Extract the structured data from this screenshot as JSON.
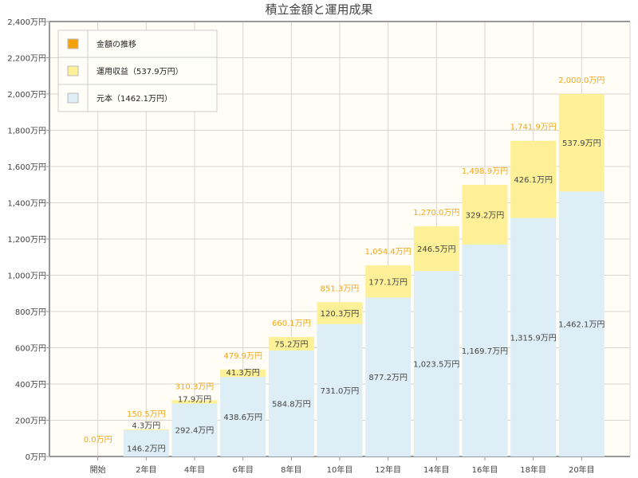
{
  "chart_data": {
    "type": "bar",
    "stacked": true,
    "title": "積立金額と運用成果",
    "categories": [
      "開始",
      "2年目",
      "4年目",
      "6年目",
      "8年目",
      "10年目",
      "12年目",
      "14年目",
      "16年目",
      "18年目",
      "20年目"
    ],
    "series": [
      {
        "name": "元本（1462.1万円）",
        "color": "#deeef6",
        "values": [
          0,
          146.2,
          292.4,
          438.6,
          584.8,
          731.0,
          877.2,
          1023.5,
          1169.7,
          1315.9,
          1462.1
        ],
        "labels": [
          "",
          "146.2万円",
          "292.4万円",
          "438.6万円",
          "584.8万円",
          "731.0万円",
          "877.2万円",
          "1,023.5万円",
          "1,169.7万円",
          "1,315.9万円",
          "1,462.1万円"
        ]
      },
      {
        "name": "運用収益（537.9万円）",
        "color": "#fdf097",
        "values": [
          0,
          4.3,
          17.9,
          41.3,
          75.2,
          120.3,
          177.1,
          246.5,
          329.2,
          426.1,
          537.9
        ],
        "labels": [
          "",
          "4.3万円",
          "17.9万円",
          "41.3万円",
          "75.2万円",
          "120.3万円",
          "177.1万円",
          "246.5万円",
          "329.2万円",
          "426.1万円",
          "537.9万円"
        ]
      }
    ],
    "totals": {
      "name": "金額の推移",
      "color": "#f5a30c",
      "values": [
        0,
        150.5,
        310.3,
        479.9,
        660.1,
        851.3,
        1054.4,
        1270.0,
        1498.9,
        1741.9,
        2000.0
      ],
      "labels": [
        "0.0万円",
        "150.5万円",
        "310.3万円",
        "479.9万円",
        "660.1万円",
        "851.3万円",
        "1,054.4万円",
        "1,270.0万円",
        "1,498.9万円",
        "1,741.9万円",
        "2,000.0万円"
      ]
    },
    "ylim": [
      0,
      2400
    ],
    "yticks": [
      "0万円",
      "200万円",
      "400万円",
      "600万円",
      "800万円",
      "1,000万円",
      "1,200万円",
      "1,400万円",
      "1,600万円",
      "1,800万円",
      "2,000万円",
      "2,200万円",
      "2,400万円"
    ],
    "grid": true,
    "legend_position": "top-left"
  }
}
